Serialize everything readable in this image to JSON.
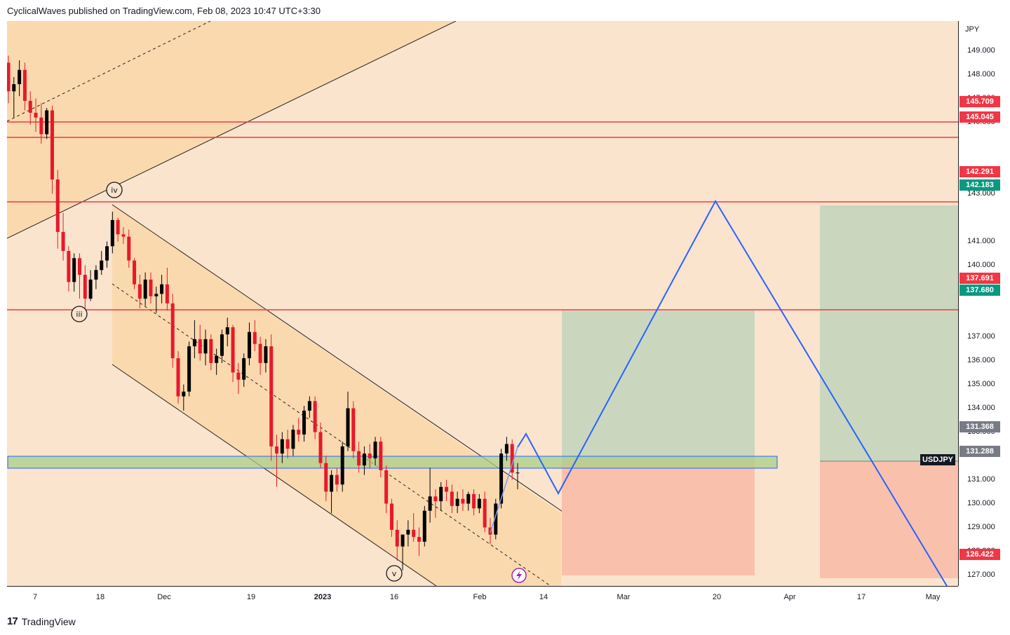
{
  "header": {
    "author": "CyclicalWaves",
    "published_text": "published on TradingView.com,",
    "date": "Feb 08, 2023 10:47 UTC+3:30"
  },
  "footer": {
    "brand": "TradingView",
    "logo_glyph": "17"
  },
  "chart_data": {
    "type": "candlestick",
    "symbol": "USDJPY",
    "currency": "JPY",
    "ylim": [
      126.0,
      150.0
    ],
    "y_ticks": [
      "149.000",
      "148.000",
      "147.000",
      "146.000",
      "144.000",
      "143.000",
      "141.000",
      "140.000",
      "139.000",
      "137.000",
      "136.000",
      "135.000",
      "134.000",
      "133.000",
      "131.000",
      "130.000",
      "129.000",
      "128.000",
      "127.000"
    ],
    "x_ticks": [
      "7",
      "18",
      "Dec",
      "19",
      "2023",
      "16",
      "Feb",
      "14",
      "Mar",
      "20",
      "Apr",
      "17",
      "May"
    ],
    "price_badges": [
      {
        "label": "145.709",
        "color": "#f23645"
      },
      {
        "label": "145.045",
        "color": "#f23645"
      },
      {
        "label": "142.291",
        "color": "#f23645"
      },
      {
        "label": "142.183",
        "color": "#089981"
      },
      {
        "label": "137.691",
        "color": "#f23645"
      },
      {
        "label": "137.680",
        "color": "#089981"
      },
      {
        "label": "131.368",
        "color": "#787b86"
      },
      {
        "label": "131.288",
        "color": "#787b86"
      },
      {
        "label": "126.422",
        "color": "#f23645"
      }
    ],
    "horizontal_levels": [
      145.709,
      145.045,
      142.291,
      137.691
    ],
    "wave_labels": [
      "iii",
      "iv",
      "v"
    ],
    "colors": {
      "background": "#fbe4cd",
      "channel_fill": "#fbd9ae",
      "candle_up": "#000000",
      "candle_down": "#e8182a",
      "level_line": "#f23645",
      "projection": "#2962ff",
      "profit_zone": "#c7d6bd",
      "loss_zone": "#f9c1ac",
      "support_band": "#a8cf8a"
    },
    "ohlc": [
      [
        148.5,
        148.8,
        146.8,
        147.3
      ],
      [
        147.3,
        147.9,
        146.2,
        147.6
      ],
      [
        147.6,
        148.6,
        147.1,
        148.2
      ],
      [
        148.2,
        148.5,
        146.5,
        146.9
      ],
      [
        146.9,
        147.3,
        145.9,
        146.4
      ],
      [
        146.4,
        147.0,
        145.6,
        146.2
      ],
      [
        146.2,
        146.8,
        145.1,
        145.5
      ],
      [
        145.5,
        146.6,
        145.3,
        146.5
      ],
      [
        146.5,
        146.7,
        143.0,
        143.6
      ],
      [
        143.6,
        144.0,
        140.7,
        141.4
      ],
      [
        141.4,
        142.2,
        140.2,
        140.6
      ],
      [
        140.6,
        140.8,
        138.9,
        139.3
      ],
      [
        139.3,
        140.5,
        138.9,
        140.3
      ],
      [
        140.3,
        140.5,
        138.6,
        139.6
      ],
      [
        139.6,
        140.0,
        137.8,
        138.6
      ],
      [
        138.6,
        139.8,
        138.5,
        139.4
      ],
      [
        139.4,
        140.0,
        139.0,
        139.8
      ],
      [
        139.8,
        140.6,
        139.6,
        140.2
      ],
      [
        140.2,
        141.0,
        139.9,
        140.8
      ],
      [
        140.8,
        142.25,
        140.5,
        141.9
      ],
      [
        141.9,
        142.0,
        141.0,
        141.3
      ],
      [
        141.3,
        141.6,
        140.9,
        141.2
      ],
      [
        141.2,
        141.5,
        139.9,
        140.2
      ],
      [
        140.2,
        140.3,
        139.0,
        139.2
      ],
      [
        139.2,
        139.6,
        138.2,
        138.6
      ],
      [
        138.6,
        139.7,
        138.3,
        139.4
      ],
      [
        139.4,
        139.7,
        138.4,
        138.7
      ],
      [
        138.7,
        139.1,
        138.0,
        138.8
      ],
      [
        138.8,
        139.6,
        138.4,
        139.2
      ],
      [
        139.2,
        139.9,
        138.1,
        138.4
      ],
      [
        138.4,
        138.8,
        135.7,
        136.1
      ],
      [
        136.1,
        136.4,
        134.2,
        134.5
      ],
      [
        134.5,
        135.0,
        133.9,
        134.7
      ],
      [
        134.7,
        136.8,
        134.5,
        136.6
      ],
      [
        136.6,
        137.7,
        136.1,
        136.9
      ],
      [
        136.9,
        137.5,
        136.0,
        136.3
      ],
      [
        136.3,
        137.3,
        135.8,
        136.9
      ],
      [
        136.9,
        137.1,
        135.6,
        135.9
      ],
      [
        135.9,
        136.5,
        135.4,
        136.2
      ],
      [
        136.2,
        137.3,
        135.9,
        137.1
      ],
      [
        137.1,
        137.8,
        136.6,
        137.4
      ],
      [
        137.4,
        137.5,
        135.1,
        135.5
      ],
      [
        135.5,
        135.9,
        134.6,
        135.2
      ],
      [
        135.2,
        136.3,
        134.9,
        136.1
      ],
      [
        136.1,
        137.6,
        135.8,
        137.2
      ],
      [
        137.2,
        137.7,
        136.4,
        136.7
      ],
      [
        136.7,
        137.0,
        135.4,
        135.9
      ],
      [
        135.9,
        136.9,
        135.5,
        136.6
      ],
      [
        136.6,
        137.1,
        131.8,
        132.4
      ],
      [
        132.4,
        132.9,
        130.7,
        132.1
      ],
      [
        132.1,
        133.0,
        131.7,
        132.7
      ],
      [
        132.7,
        133.1,
        131.9,
        132.3
      ],
      [
        132.3,
        133.3,
        132.0,
        133.1
      ],
      [
        133.1,
        133.6,
        132.6,
        132.9
      ],
      [
        132.9,
        134.1,
        132.6,
        133.9
      ],
      [
        133.9,
        134.5,
        133.6,
        134.3
      ],
      [
        134.3,
        134.5,
        132.7,
        133.0
      ],
      [
        133.0,
        133.4,
        131.5,
        131.7
      ],
      [
        131.7,
        132.0,
        130.1,
        130.5
      ],
      [
        130.5,
        131.4,
        129.6,
        131.2
      ],
      [
        131.2,
        131.5,
        130.5,
        130.8
      ],
      [
        130.8,
        132.6,
        130.5,
        132.4
      ],
      [
        132.4,
        134.7,
        132.2,
        134.0
      ],
      [
        134.0,
        134.3,
        131.9,
        132.2
      ],
      [
        132.2,
        132.6,
        131.3,
        131.6
      ],
      [
        131.6,
        132.4,
        131.2,
        132.1
      ],
      [
        132.1,
        132.5,
        131.5,
        131.9
      ],
      [
        131.9,
        132.8,
        131.6,
        132.6
      ],
      [
        132.6,
        132.8,
        131.1,
        131.4
      ],
      [
        131.4,
        131.6,
        129.6,
        130.0
      ],
      [
        130.0,
        130.2,
        128.6,
        128.9
      ],
      [
        128.9,
        129.3,
        127.6,
        128.2
      ],
      [
        128.2,
        128.6,
        127.2,
        128.7
      ],
      [
        128.7,
        129.3,
        128.2,
        128.9
      ],
      [
        128.9,
        129.6,
        128.4,
        128.6
      ],
      [
        128.6,
        129.0,
        127.8,
        128.4
      ],
      [
        128.4,
        129.9,
        128.2,
        129.7
      ],
      [
        129.7,
        131.5,
        129.2,
        130.3
      ],
      [
        130.3,
        130.6,
        129.4,
        130.1
      ],
      [
        130.1,
        130.9,
        129.7,
        130.7
      ],
      [
        130.7,
        131.0,
        130.1,
        130.5
      ],
      [
        130.5,
        130.8,
        129.6,
        129.9
      ],
      [
        129.9,
        130.5,
        129.6,
        130.2
      ],
      [
        130.2,
        130.6,
        129.7,
        130.0
      ],
      [
        130.0,
        130.5,
        129.7,
        130.4
      ],
      [
        130.4,
        130.6,
        129.5,
        129.8
      ],
      [
        129.8,
        130.4,
        129.6,
        130.2
      ],
      [
        130.2,
        130.5,
        128.8,
        129.0
      ],
      [
        129.0,
        129.4,
        128.3,
        128.7
      ],
      [
        128.7,
        130.2,
        128.5,
        130.0
      ],
      [
        130.0,
        132.3,
        129.8,
        132.1
      ],
      [
        132.1,
        132.8,
        131.8,
        132.5
      ],
      [
        132.5,
        132.7,
        131.0,
        131.3
      ],
      [
        131.3,
        131.7,
        130.6,
        131.3
      ]
    ],
    "projection_path": [
      [
        0,
        131.9
      ],
      [
        1,
        132.5
      ],
      [
        2,
        130.0
      ],
      [
        3,
        142.2
      ],
      [
        4,
        126.0
      ]
    ]
  }
}
